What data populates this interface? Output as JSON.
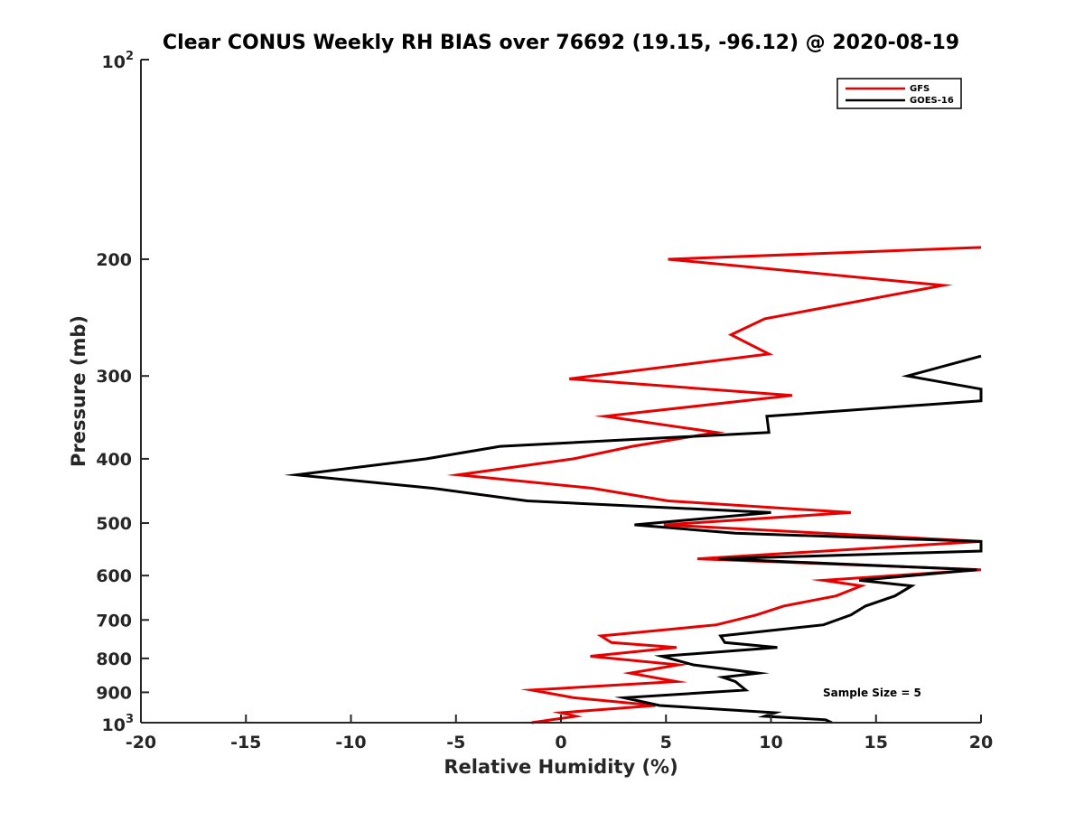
{
  "chart_data": {
    "type": "line",
    "title": "Clear CONUS Weekly RH BIAS over 76692 (19.15, -96.12) @ 2020-08-19",
    "xlabel": "Relative Humidity (%)",
    "ylabel": "Pressure (mb)",
    "xlim": [
      -20,
      20
    ],
    "ylim": [
      100,
      1000
    ],
    "yscale": "log",
    "yreversed": true,
    "x_ticks": [
      -20,
      -15,
      -10,
      -5,
      0,
      5,
      10,
      15,
      20
    ],
    "x_tick_labels": [
      "-20",
      "-15",
      "-10",
      "-5",
      "0",
      "5",
      "10",
      "15",
      "20"
    ],
    "y_ticks": [
      200,
      300,
      400,
      500,
      600,
      700,
      800,
      900
    ],
    "y_tick_labels": [
      "200",
      "300",
      "400",
      "500",
      "600",
      "700",
      "800",
      "900"
    ],
    "y_end_labels": [
      {
        "value": 100,
        "base": "10",
        "exp": "2"
      },
      {
        "value": 1000,
        "base": "10",
        "exp": "3"
      }
    ],
    "legend": {
      "position": "top-right"
    },
    "annotation": "Sample Size = 5",
    "series": [
      {
        "name": "GFS",
        "color": "#e60000",
        "points": [
          [
            20,
            192
          ],
          [
            5.1,
            200
          ],
          [
            18.2,
            219
          ],
          [
            9.7,
            246
          ],
          [
            8.1,
            260
          ],
          [
            9.9,
            278
          ],
          [
            0.4,
            303
          ],
          [
            11,
            321
          ],
          [
            2.1,
            345
          ],
          [
            7.4,
            365
          ],
          [
            3.4,
            383
          ],
          [
            0.6,
            400
          ],
          [
            -4.9,
            423
          ],
          [
            1.5,
            443
          ],
          [
            5.1,
            463
          ],
          [
            13.8,
            482
          ],
          [
            4.9,
            503
          ],
          [
            20,
            533
          ],
          [
            6.5,
            566
          ],
          [
            20,
            588
          ],
          [
            12.5,
            610
          ],
          [
            14.3,
            622
          ],
          [
            13.1,
            644
          ],
          [
            10.6,
            667
          ],
          [
            9.3,
            688
          ],
          [
            7.4,
            712
          ],
          [
            1.9,
            740
          ],
          [
            2.4,
            757
          ],
          [
            5.5,
            770
          ],
          [
            1.4,
            794
          ],
          [
            5.6,
            818
          ],
          [
            3.3,
            842
          ],
          [
            5.5,
            867
          ],
          [
            -1.4,
            893
          ],
          [
            0.6,
            917
          ],
          [
            4.5,
            942
          ],
          [
            0,
            966
          ],
          [
            0.7,
            978
          ],
          [
            -1.4,
            1000
          ]
        ]
      },
      {
        "name": "GOES-16",
        "color": "#000000",
        "points": [
          [
            20,
            280
          ],
          [
            16.5,
            300
          ],
          [
            20,
            314
          ],
          [
            20,
            327
          ],
          [
            9.8,
            345
          ],
          [
            9.9,
            365
          ],
          [
            -2.9,
            383
          ],
          [
            -6.4,
            400
          ],
          [
            -12.6,
            423
          ],
          [
            -6.1,
            443
          ],
          [
            -1.6,
            463
          ],
          [
            10,
            482
          ],
          [
            3.5,
            503
          ],
          [
            8.3,
            518
          ],
          [
            20,
            533
          ],
          [
            20,
            551
          ],
          [
            7.5,
            566
          ],
          [
            19.8,
            588
          ],
          [
            14.2,
            610
          ],
          [
            16.7,
            622
          ],
          [
            15.9,
            644
          ],
          [
            14.5,
            667
          ],
          [
            13.8,
            688
          ],
          [
            12.5,
            712
          ],
          [
            7.6,
            740
          ],
          [
            7.8,
            757
          ],
          [
            10.3,
            770
          ],
          [
            4.8,
            794
          ],
          [
            6.3,
            818
          ],
          [
            9.4,
            842
          ],
          [
            7.7,
            854
          ],
          [
            8.3,
            867
          ],
          [
            8.8,
            893
          ],
          [
            3,
            917
          ],
          [
            4.7,
            942
          ],
          [
            10.2,
            966
          ],
          [
            9.7,
            978
          ],
          [
            12.6,
            990
          ],
          [
            12.9,
            1000
          ]
        ]
      }
    ]
  }
}
